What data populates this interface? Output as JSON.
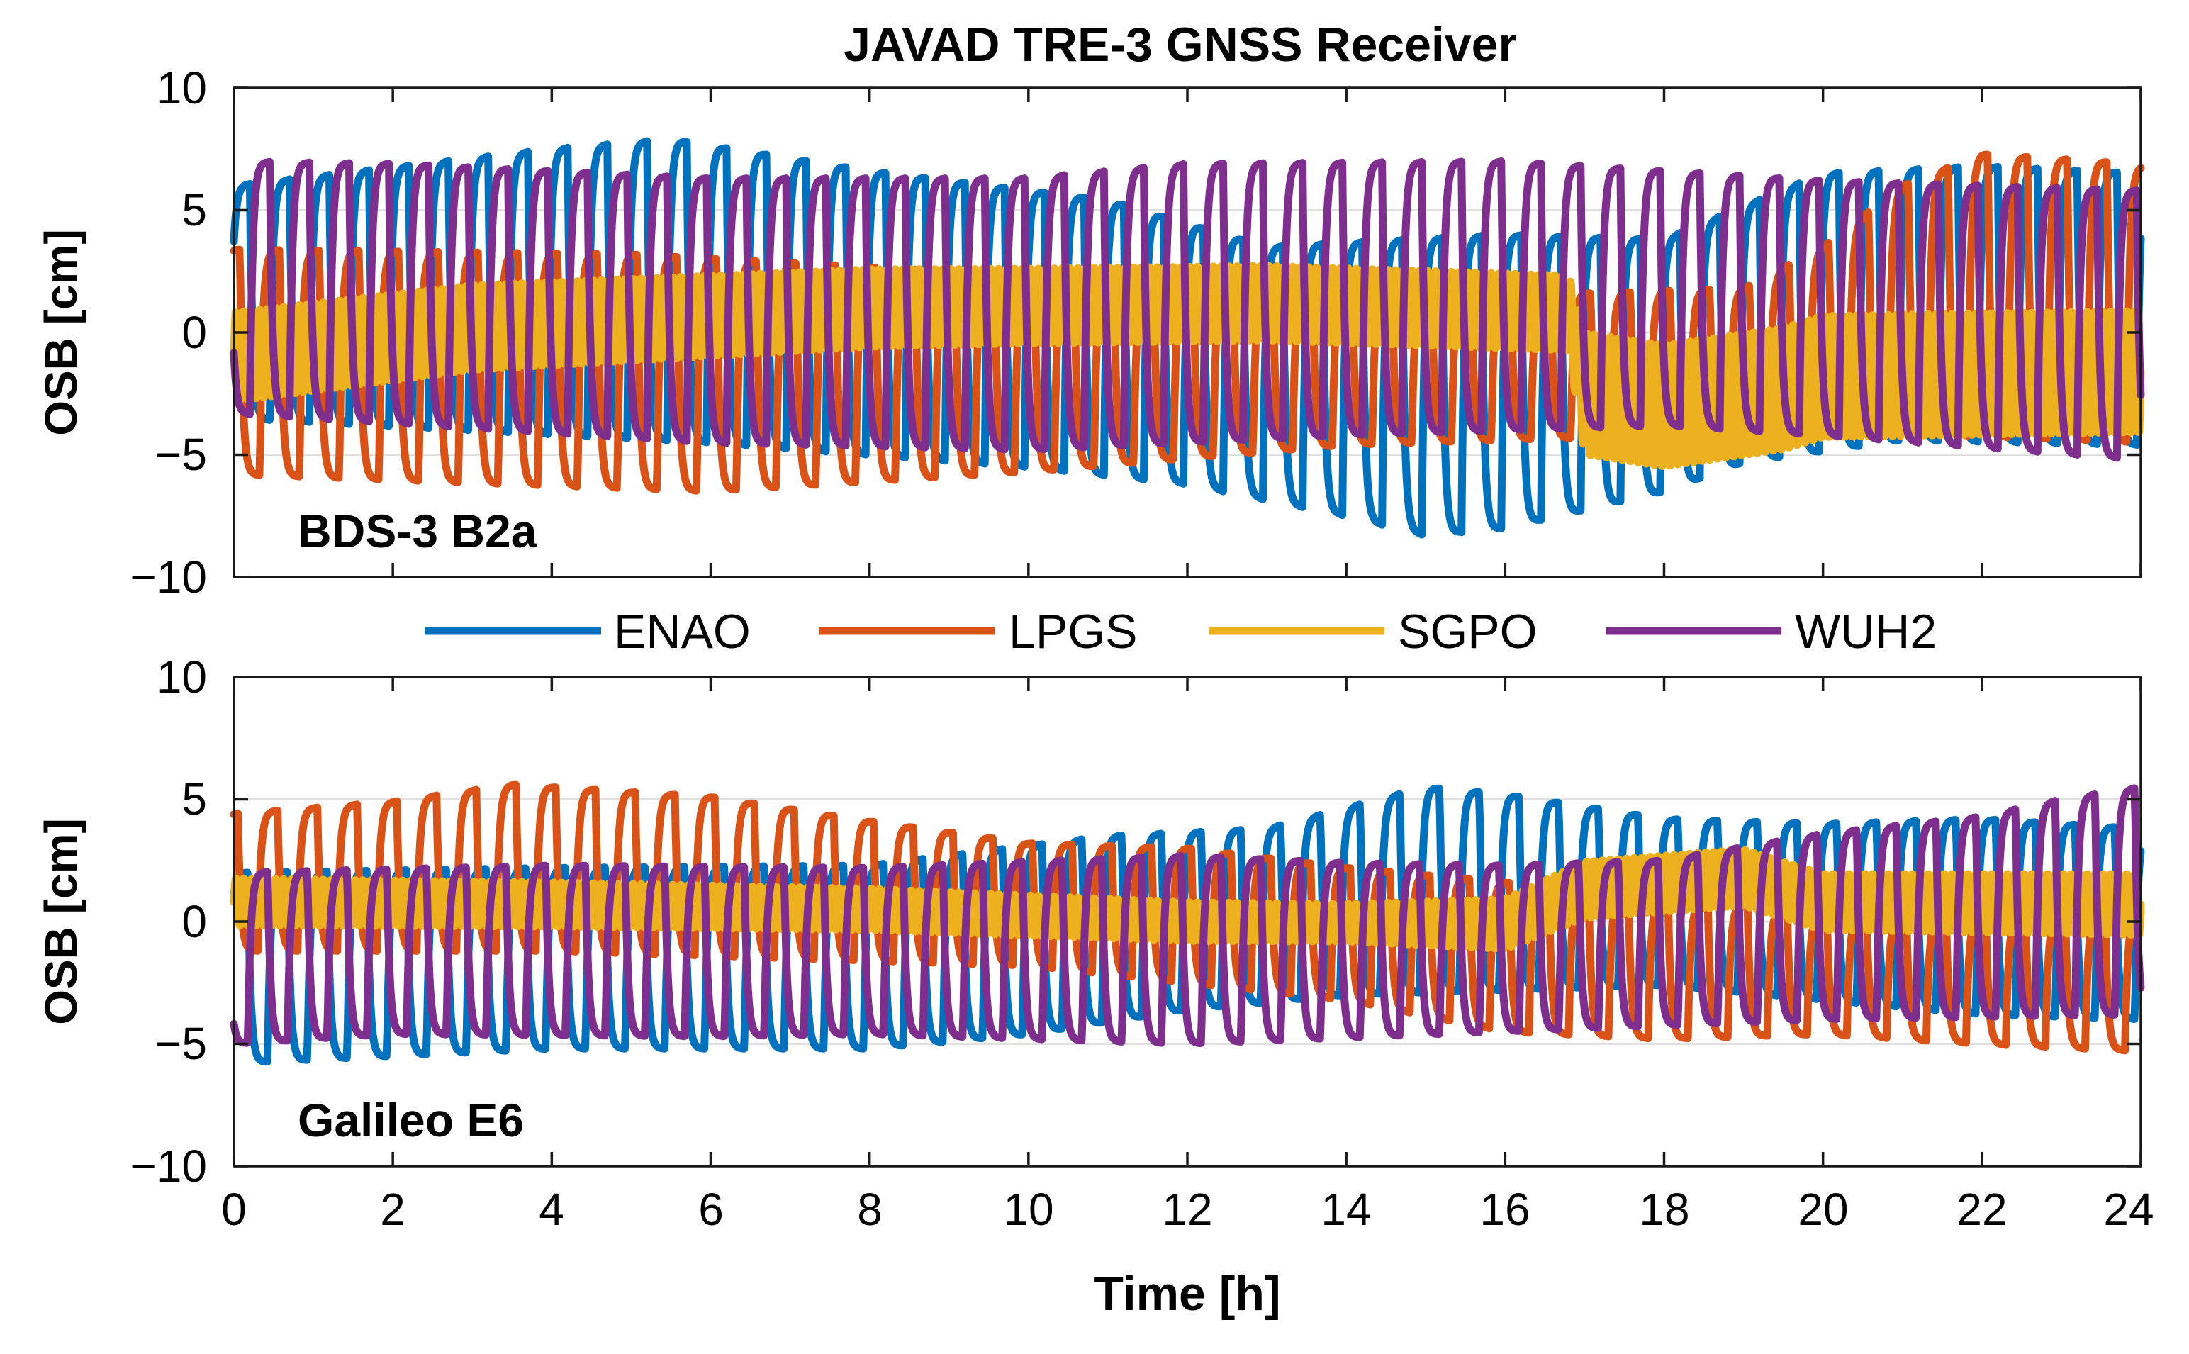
{
  "chart_data": {
    "type": "line",
    "title": "JAVAD TRE-3 GNSS Receiver",
    "xlabel": "Time [h]",
    "xlim": [
      0,
      24
    ],
    "xticks": [
      "0",
      "2",
      "4",
      "6",
      "8",
      "10",
      "12",
      "14",
      "16",
      "18",
      "20",
      "22",
      "24"
    ],
    "legend": {
      "placement": "between-panels",
      "entries": [
        "ENAO",
        "LPGS",
        "SGPO",
        "WUH2"
      ]
    },
    "colors": {
      "ENAO": "#0072BD",
      "LPGS": "#D95319",
      "SGPO": "#EDB120",
      "WUH2": "#7E2F8E"
    },
    "panels": [
      {
        "label": "BDS-3 B2a",
        "ylabel": "OSB [cm]",
        "ylim": [
          -10,
          10
        ],
        "yticks": [
          "10",
          "5",
          "0",
          "−10"
        ],
        "yticks_extra": [
          "−5"
        ],
        "grid": true,
        "series": [
          {
            "name": "ENAO",
            "oscillation_period_h": 0.5,
            "approx_range_cm": [
              -8.3,
              8.0
            ]
          },
          {
            "name": "LPGS",
            "oscillation_period_h": 0.5,
            "approx_range_cm": [
              -6.5,
              7.7
            ]
          },
          {
            "name": "SGPO",
            "oscillation_period_h": 0.1,
            "approx_range_cm": [
              -5.5,
              2.8
            ]
          },
          {
            "name": "WUH2",
            "oscillation_period_h": 0.5,
            "approx_range_cm": [
              -5.3,
              7.2
            ]
          }
        ]
      },
      {
        "label": "Galileo E6",
        "ylabel": "OSB [cm]",
        "ylim": [
          -10,
          10
        ],
        "yticks": [
          "10",
          "5",
          "0",
          "−5",
          "−10"
        ],
        "grid": true,
        "series": [
          {
            "name": "ENAO",
            "oscillation_period_h": 0.5,
            "approx_range_cm": [
              -5.8,
              5.6
            ]
          },
          {
            "name": "LPGS",
            "oscillation_period_h": 0.5,
            "approx_range_cm": [
              -5.4,
              5.7
            ]
          },
          {
            "name": "SGPO",
            "oscillation_period_h": 0.1,
            "approx_range_cm": [
              -1.2,
              3.3
            ]
          },
          {
            "name": "WUH2",
            "oscillation_period_h": 0.5,
            "approx_range_cm": [
              -5.0,
              5.5
            ]
          }
        ]
      }
    ]
  }
}
